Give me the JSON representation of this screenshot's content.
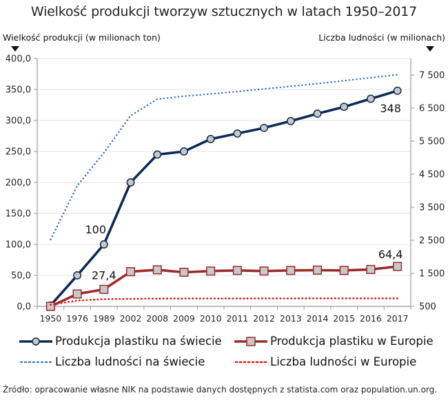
{
  "chart_data": {
    "type": "line",
    "title": "Wielkość produkcji tworzyw sztucznych w latach 1950–2017",
    "ylabel_left": "Wielkość produkcji (w milionach ton)",
    "ylabel_right": "Liczba ludności (w milionach)",
    "xlabel": "",
    "categories": [
      "1950",
      "1976",
      "1989",
      "2002",
      "2008",
      "2009",
      "2010",
      "2011",
      "2012",
      "2013",
      "2014",
      "2015",
      "2016",
      "2017"
    ],
    "y_left": {
      "range": [
        0,
        400
      ],
      "ticks": [
        "0,0",
        "50,0",
        "100,0",
        "150,0",
        "200,0",
        "250,0",
        "300,0",
        "350,0",
        "400,0"
      ],
      "tick_values": [
        0,
        50,
        100,
        150,
        200,
        250,
        300,
        350,
        400
      ]
    },
    "y_right": {
      "range": [
        500,
        8000
      ],
      "ticks": [
        "500",
        "1 500",
        "2 500",
        "3 500",
        "4 500",
        "5 500",
        "6 500",
        "7 500"
      ],
      "tick_values": [
        500,
        1500,
        2500,
        3500,
        4500,
        5500,
        6500,
        7500
      ]
    },
    "grid": true,
    "legend_position": "bottom",
    "series": [
      {
        "name": "Produkcja plastiku na świecie",
        "axis": "left",
        "style": "solid-circle",
        "color": "#0d2a55",
        "values": [
          1.5,
          50,
          100,
          200,
          245,
          250,
          270,
          279,
          288,
          299,
          311,
          322,
          335,
          348
        ],
        "labels": {
          "2": "100",
          "13": "348"
        }
      },
      {
        "name": "Produkcja plastiku w Europie",
        "axis": "left",
        "style": "solid-square",
        "color": "#9b2b2b",
        "values": [
          0,
          20,
          27.4,
          56,
          59,
          55,
          57,
          58,
          57,
          58,
          58.5,
          58,
          59.5,
          64.4
        ],
        "labels": {
          "2": "27,4",
          "13": "64,4"
        }
      },
      {
        "name": "Liczba ludności na świecie",
        "axis": "right",
        "style": "dotted",
        "color": "#2f6fbf",
        "values": [
          2525,
          4150,
          5150,
          6270,
          6770,
          6860,
          6930,
          7000,
          7080,
          7160,
          7240,
          7330,
          7420,
          7510
        ]
      },
      {
        "name": "Liczba ludności w Europie",
        "axis": "right",
        "style": "dotted",
        "color": "#ee1111",
        "values": [
          549,
          676,
          719,
          728,
          735,
          736,
          737,
          738,
          739,
          740,
          741,
          741,
          742,
          742
        ]
      }
    ]
  },
  "source": "Źródło: opracowanie własne NIK na podstawie danych dostępnych z statista.com oraz population.un.org."
}
